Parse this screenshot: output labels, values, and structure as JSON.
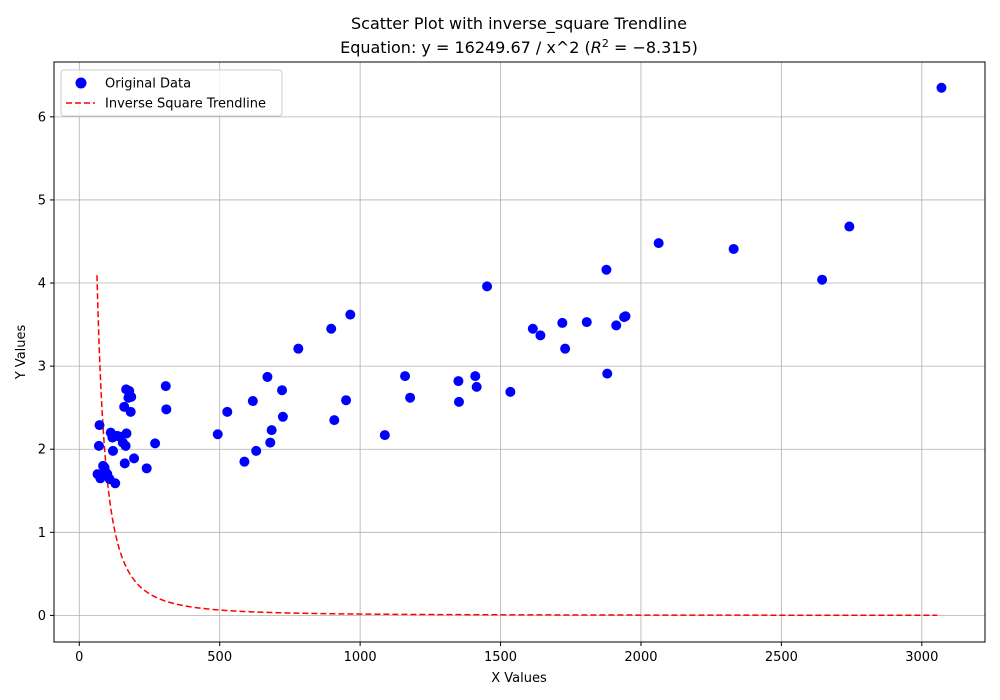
{
  "chart_data": {
    "type": "scatter",
    "title": "Scatter Plot with inverse_square Trendline",
    "subtitle_prefix": "Equation: y = 16249.67 / x^2 (",
    "subtitle_r2_symbol": "R",
    "subtitle_r2_exp": "2",
    "subtitle_r2_value": " = −8.315)",
    "xlabel": "X Values",
    "ylabel": "Y Values",
    "xlim": [
      -90,
      3225
    ],
    "ylim": [
      -0.32,
      6.66
    ],
    "xticks": [
      0,
      500,
      1000,
      1500,
      2000,
      2500,
      3000
    ],
    "yticks": [
      0,
      1,
      2,
      3,
      4,
      5,
      6
    ],
    "grid": true,
    "legend_position": "top-left",
    "series": [
      {
        "name": "Original Data",
        "kind": "points",
        "color": "#0000ff",
        "points": [
          [
            65,
            1.7
          ],
          [
            70,
            2.04
          ],
          [
            72,
            2.29
          ],
          [
            75,
            1.65
          ],
          [
            80,
            1.68
          ],
          [
            85,
            1.8
          ],
          [
            90,
            1.78
          ],
          [
            95,
            1.72
          ],
          [
            100,
            1.7
          ],
          [
            108,
            1.64
          ],
          [
            112,
            2.2
          ],
          [
            118,
            2.14
          ],
          [
            120,
            1.98
          ],
          [
            128,
            1.59
          ],
          [
            135,
            2.16
          ],
          [
            145,
            2.15
          ],
          [
            155,
            2.08
          ],
          [
            160,
            2.51
          ],
          [
            162,
            1.83
          ],
          [
            165,
            2.04
          ],
          [
            167,
            2.72
          ],
          [
            168,
            2.19
          ],
          [
            175,
            2.62
          ],
          [
            178,
            2.7
          ],
          [
            183,
            2.45
          ],
          [
            185,
            2.63
          ],
          [
            195,
            1.89
          ],
          [
            240,
            1.77
          ],
          [
            270,
            2.07
          ],
          [
            308,
            2.76
          ],
          [
            310,
            2.48
          ],
          [
            493,
            2.18
          ],
          [
            527,
            2.45
          ],
          [
            588,
            1.85
          ],
          [
            618,
            2.58
          ],
          [
            630,
            1.98
          ],
          [
            670,
            2.87
          ],
          [
            680,
            2.08
          ],
          [
            685,
            2.23
          ],
          [
            722,
            2.71
          ],
          [
            725,
            2.39
          ],
          [
            780,
            3.21
          ],
          [
            897,
            3.45
          ],
          [
            908,
            2.35
          ],
          [
            950,
            2.59
          ],
          [
            965,
            3.62
          ],
          [
            1088,
            2.17
          ],
          [
            1160,
            2.88
          ],
          [
            1178,
            2.62
          ],
          [
            1350,
            2.82
          ],
          [
            1352,
            2.57
          ],
          [
            1410,
            2.88
          ],
          [
            1415,
            2.75
          ],
          [
            1452,
            3.96
          ],
          [
            1535,
            2.69
          ],
          [
            1615,
            3.45
          ],
          [
            1642,
            3.37
          ],
          [
            1720,
            3.52
          ],
          [
            1730,
            3.21
          ],
          [
            1807,
            3.53
          ],
          [
            1877,
            4.16
          ],
          [
            1880,
            2.91
          ],
          [
            1912,
            3.49
          ],
          [
            1940,
            3.59
          ],
          [
            1945,
            3.6
          ],
          [
            2063,
            4.48
          ],
          [
            2330,
            4.41
          ],
          [
            2645,
            4.04
          ],
          [
            2742,
            4.68
          ],
          [
            3070,
            6.35
          ]
        ]
      },
      {
        "name": "Inverse Square Trendline",
        "kind": "line",
        "color": "#ff0000",
        "dash": "dashed",
        "coefficient": 16249.67,
        "x_start": 63,
        "x_end": 3055
      }
    ]
  }
}
